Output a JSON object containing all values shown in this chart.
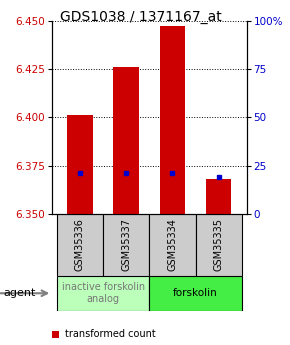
{
  "title": "GDS1038 / 1371167_at",
  "samples": [
    "GSM35336",
    "GSM35337",
    "GSM35334",
    "GSM35335"
  ],
  "bar_values": [
    6.401,
    6.426,
    6.447,
    6.368
  ],
  "bar_bottom": 6.35,
  "percentile_values": [
    6.371,
    6.371,
    6.371,
    6.369
  ],
  "ylim_left": [
    6.35,
    6.45
  ],
  "yticks_left": [
    6.35,
    6.375,
    6.4,
    6.425,
    6.45
  ],
  "yticks_right_vals": [
    0,
    25,
    50,
    75,
    100
  ],
  "ylim_right": [
    0,
    100
  ],
  "bar_color": "#cc0000",
  "percentile_color": "#0000cc",
  "agent_labels": [
    "inactive forskolin\nanalog",
    "forskolin"
  ],
  "agent_colors": [
    "#bbffbb",
    "#44ee44"
  ],
  "agent_text_colors": [
    "#777777",
    "#000000"
  ],
  "sample_box_color": "#cccccc",
  "title_fontsize": 10,
  "tick_fontsize": 7.5,
  "label_fontsize": 7,
  "legend_fontsize": 7,
  "agent_fontsize": 7.5
}
